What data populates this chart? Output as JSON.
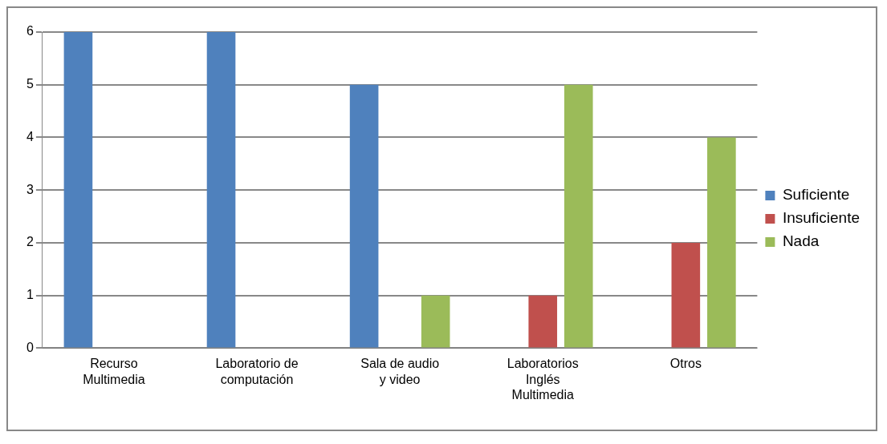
{
  "chart_data": {
    "type": "bar",
    "categories": [
      "Recurso Multimedia",
      "Laboratorio de computación",
      "Sala de audio y video",
      "Laboratorios Inglés Multimedia",
      "Otros"
    ],
    "series": [
      {
        "name": "Suficiente",
        "color": "#4f81bd",
        "values": [
          6,
          6,
          5,
          0,
          0
        ]
      },
      {
        "name": "Insuficiente",
        "color": "#c0504d",
        "values": [
          0,
          0,
          0,
          1,
          2
        ]
      },
      {
        "name": "Nada",
        "color": "#9bbb59",
        "values": [
          0,
          0,
          1,
          5,
          4
        ]
      }
    ],
    "ylim": [
      0,
      6
    ],
    "yticks": [
      0,
      1,
      2,
      3,
      4,
      5,
      6
    ],
    "grid": "y",
    "legend": "right"
  }
}
